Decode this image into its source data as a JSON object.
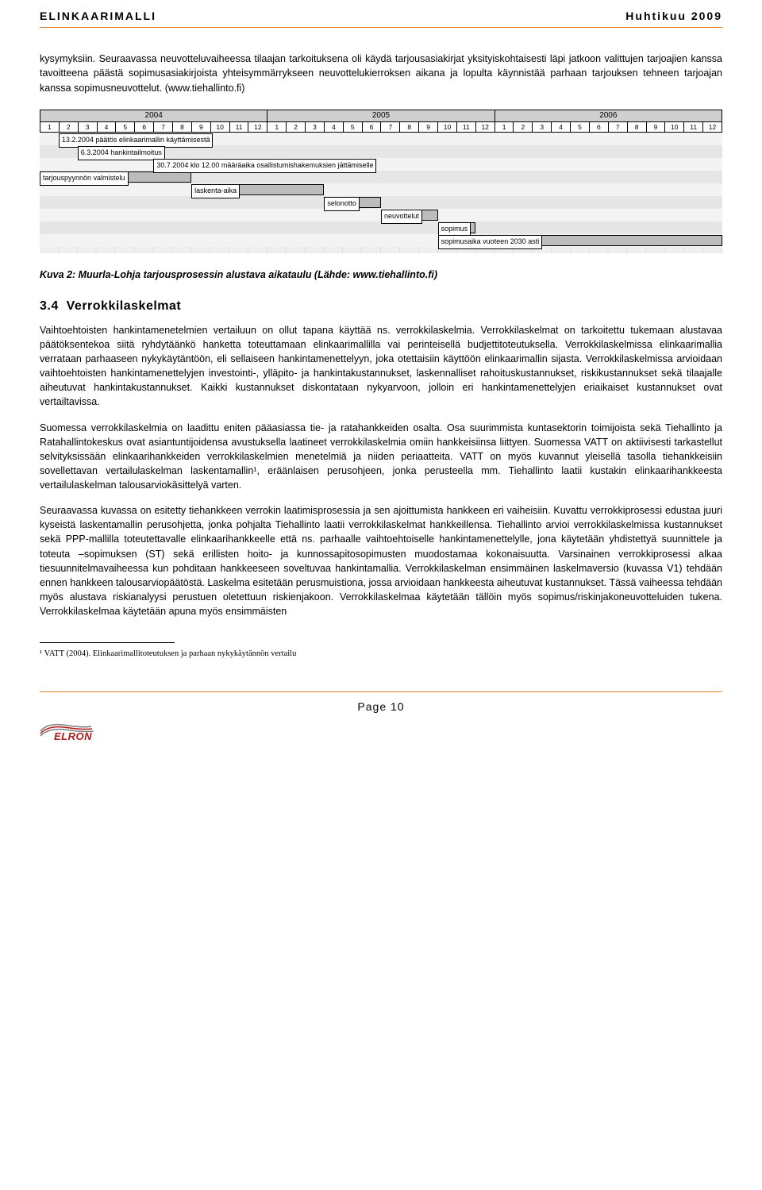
{
  "header": {
    "left": "ELINKAARIMALLI",
    "right": "Huhtikuu 2009"
  },
  "intro_paragraph": "kysymyksiin. Seuraavassa neuvotteluvaiheessa tilaajan tarkoituksena oli käydä tarjousasiakirjat yksityiskohtaisesti läpi jatkoon valittujen tarjoajien kanssa tavoitteena päästä sopimusasiakirjoista yhteisymmärrykseen neuvottelukierroksen aikana ja lopulta käynnistää parhaan tarjouksen tehneen tarjoajan kanssa sopimusneuvottelut. (www.tiehallinto.fi)",
  "gantt": {
    "years": [
      "2004",
      "2005",
      "2006"
    ],
    "months": [
      "1",
      "2",
      "3",
      "4",
      "5",
      "6",
      "7",
      "8",
      "9",
      "10",
      "11",
      "12",
      "1",
      "2",
      "3",
      "4",
      "5",
      "6",
      "7",
      "8",
      "9",
      "10",
      "11",
      "12",
      "1",
      "2",
      "3",
      "4",
      "5",
      "6",
      "7",
      "8",
      "9",
      "10",
      "11",
      "12"
    ],
    "rows": [
      {
        "label": "13.2.2004 päätös elinkaarimallin käyttämisestä",
        "box_start": 1,
        "box_end": 1
      },
      {
        "label": "6.3.2004 hankintailmoitus",
        "box_start": 2,
        "box_end": 2
      },
      {
        "label": "30.7.2004 klo 12.00 määräaika osallistumishakemuksien jättämiselle",
        "box_start": 6,
        "box_end": 6
      },
      {
        "label": "tarjouspyynnön valmistelu",
        "bar_start": 0,
        "bar_end": 8
      },
      {
        "label": "laskenta-aika",
        "bar_start": 8,
        "bar_end": 15
      },
      {
        "label": "selonotto",
        "bar_start": 15,
        "bar_end": 18
      },
      {
        "label": "neuvottelut",
        "bar_start": 18,
        "bar_end": 21
      },
      {
        "label": "sopimus",
        "bar_start": 21,
        "bar_end": 23
      },
      {
        "label": "sopimusaika vuoteen 2030 asti",
        "bar_start": 21,
        "bar_end": 36
      }
    ],
    "colors": {
      "year_bg": "#cfcfcf",
      "bar_fill": "#bcbcbc",
      "grid": "#dddddd",
      "row_alt": "#e6e6e6",
      "border": "#000000"
    }
  },
  "caption": "Kuva 2: Muurla-Lohja tarjousprosessin alustava aikataulu (Lähde: www.tiehallinto.fi)",
  "section_number": "3.4",
  "section_title": "Verrokkilaskelmat",
  "para1": "Vaihtoehtoisten hankintamenetelmien vertailuun on ollut tapana käyttää ns. verrokkilaskelmia. Verrokkilaskelmat on tarkoitettu tukemaan alustavaa päätöksentekoa siitä ryhdytäänkö hanketta toteuttamaan elinkaarimallilla vai perinteisellä budjettitoteutuksella. Verrokkilaskelmissa elinkaarimallia verrataan parhaaseen nykykäytäntöön, eli sellaiseen hankintamenettelyyn, joka otettaisiin käyttöön elinkaarimallin sijasta. Verrokkilaskelmissa arvioidaan vaihtoehtoisten hankintamenettelyjen investointi-, ylläpito- ja hankintakustannukset, laskennalliset rahoituskustannukset, riskikustannukset sekä tilaajalle aiheutuvat hankintakustannukset. Kaikki kustannukset diskontataan nykyarvoon, jolloin eri hankintamenettelyjen eriaikaiset kustannukset ovat vertailtavissa.",
  "para2": "Suomessa verrokkilaskelmia on laadittu eniten pääasiassa tie- ja ratahankkeiden osalta. Osa suurimmista kuntasektorin toimijoista sekä Tiehallinto ja Ratahallintokeskus ovat asiantuntijoidensa avustuksella laatineet verrokkilaskelmia omiin hankkeisiinsa liittyen. Suomessa VATT on aktiivisesti tarkastellut selvityksissään elinkaarihankkeiden verrokkilaskelmien menetelmiä ja niiden periaatteita. VATT on myös kuvannut yleisellä tasolla tiehankkeisiin sovellettavan vertailulaskelman laskentamallin¹, eräänlaisen perusohjeen, jonka perusteella mm. Tiehallinto laatii kustakin elinkaarihankkeesta vertailulaskelman talousarviokäsittelyä varten.",
  "para3": "Seuraavassa kuvassa on esitetty tiehankkeen verrokin laatimisprosessia ja sen ajoittumista hankkeen eri vaiheisiin. Kuvattu verrokkiprosessi edustaa juuri kyseistä laskentamallin perusohjetta, jonka pohjalta Tiehallinto laatii verrokkilaskelmat hankkeillensa. Tiehallinto arvioi verrokkilaskelmissa kustannukset sekä PPP-mallilla toteutettavalle elinkaarihankkeelle että ns. parhaalle vaihtoehtoiselle hankintamenettelylle, jona käytetään yhdistettyä suunnittele ja toteuta –sopimuksen (ST) sekä erillisten hoito- ja kunnossapitosopimusten muodostamaa kokonaisuutta. Varsinainen verrokkiprosessi alkaa tiesuunnitelmavaiheessa kun pohditaan hankkeeseen soveltuvaa hankintamallia. Verrokkilaskelman ensimmäinen laskelmaversio (kuvassa V1) tehdään ennen hankkeen talousarviopäätöstä. Laskelma esitetään perusmuistiona, jossa arvioidaan hankkeesta aiheutuvat kustannukset. Tässä vaiheessa tehdään myös alustava riskianalyysi perustuen oletettuun riskienjakoon. Verrokkilaskelmaa käytetään tällöin myös sopimus/riskinjakoneuvotteluiden tukena. Verrokkilaskelmaa käytetään apuna myös ensimmäisten",
  "footnote": "¹ VATT (2004). Elinkaarimallitoteutuksen ja parhaan nykykäytännön vertailu",
  "page_label": "Page 10",
  "logo_text": "ELRON",
  "colors": {
    "accent": "#e57c1f",
    "logo_red": "#b11818",
    "logo_gray": "#7d7d7d"
  }
}
